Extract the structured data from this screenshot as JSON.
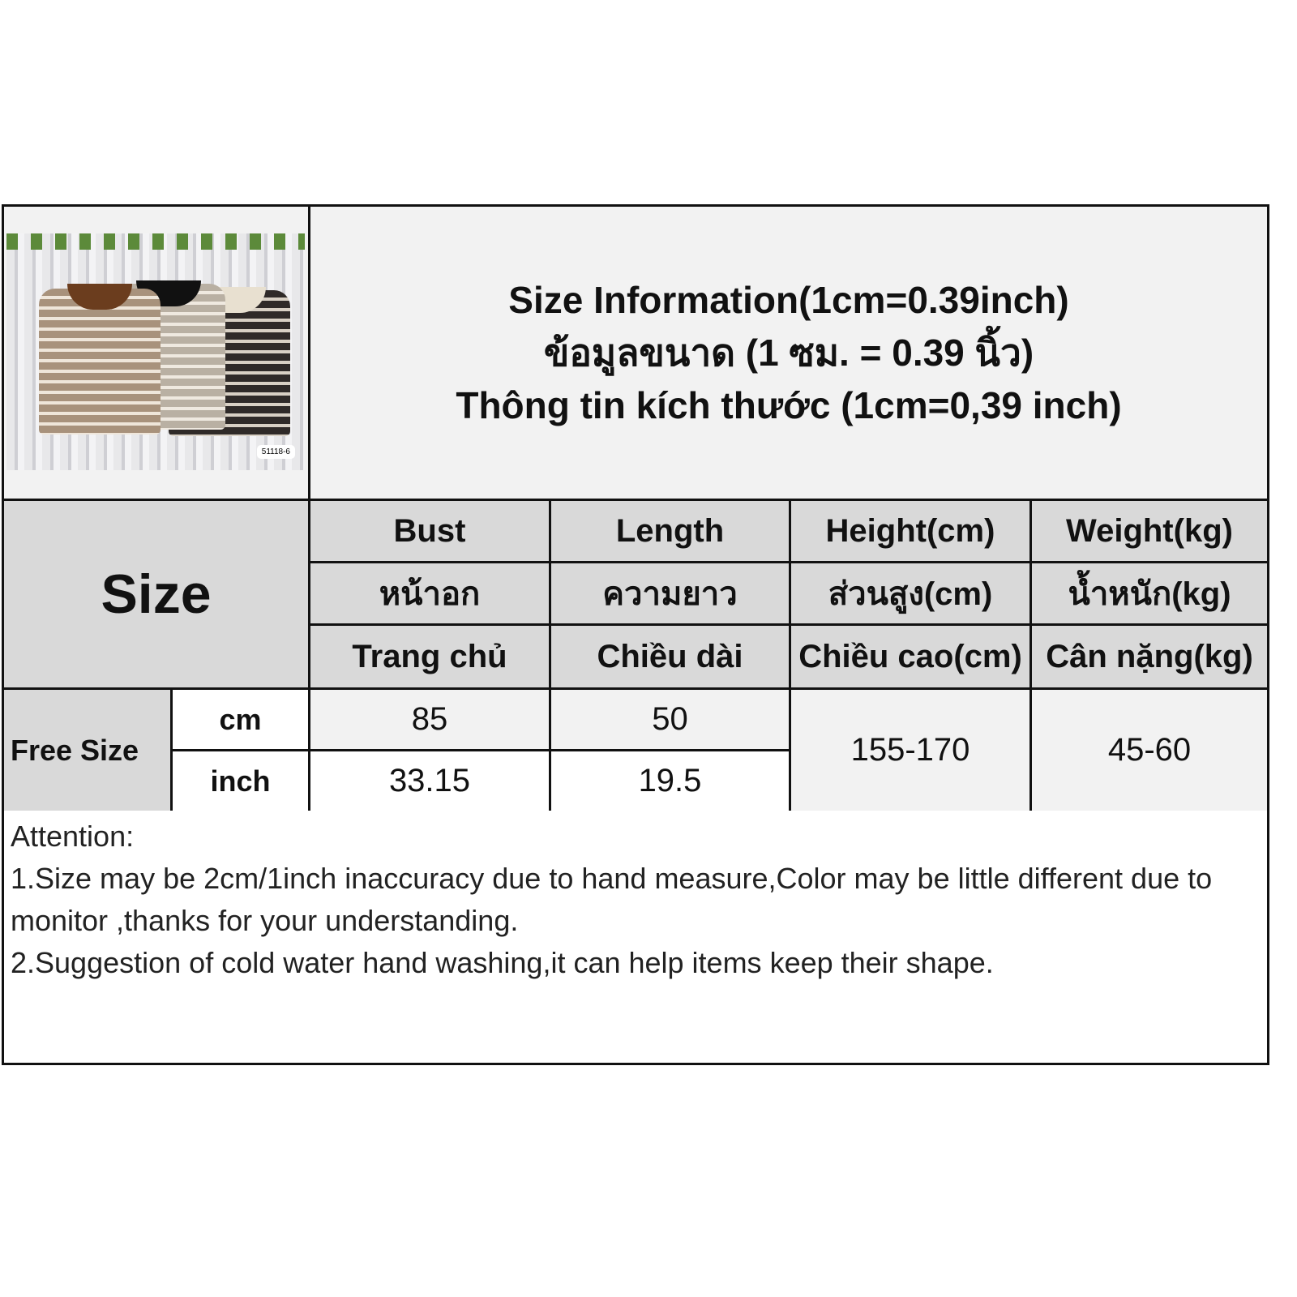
{
  "product_photo": {
    "tag_code": "51118-6",
    "colors": [
      "#a8927c",
      "#b9b0a3",
      "#2f2a28"
    ]
  },
  "title": {
    "en": "Size Information(1cm=0.39inch)",
    "th": "ข้อมูลขนาด (1 ซม. = 0.39 นิ้ว)",
    "vi": "Thông tin kích thước (1cm=0,39 inch)"
  },
  "size_label": "Size",
  "headers": [
    {
      "en": "Bust",
      "th": "หน้าอก",
      "vi": "Trang chủ"
    },
    {
      "en": "Length",
      "th": "ความยาว",
      "vi": "Chiều dài"
    },
    {
      "en": "Height(cm)",
      "th": "ส่วนสูง(cm)",
      "vi": "Chiều cao(cm)"
    },
    {
      "en": "Weight(kg)",
      "th": "น้ำหนัก(kg)",
      "vi": "Cân nặng(kg)"
    }
  ],
  "rows": {
    "size_name": "Free Size",
    "cm": {
      "unit": "cm",
      "bust": "85",
      "length": "50"
    },
    "inch": {
      "unit": "inch",
      "bust": "33.15",
      "length": "19.5"
    },
    "height": "155-170",
    "weight": "45-60"
  },
  "attention": {
    "heading": "Attention:",
    "line1": "1.Size may be 2cm/1inch inaccuracy due to hand measure,Color may be little different due to monitor ,thanks for your understanding.",
    "line2": "2.Suggestion of cold water hand washing,it can help items keep their shape."
  }
}
